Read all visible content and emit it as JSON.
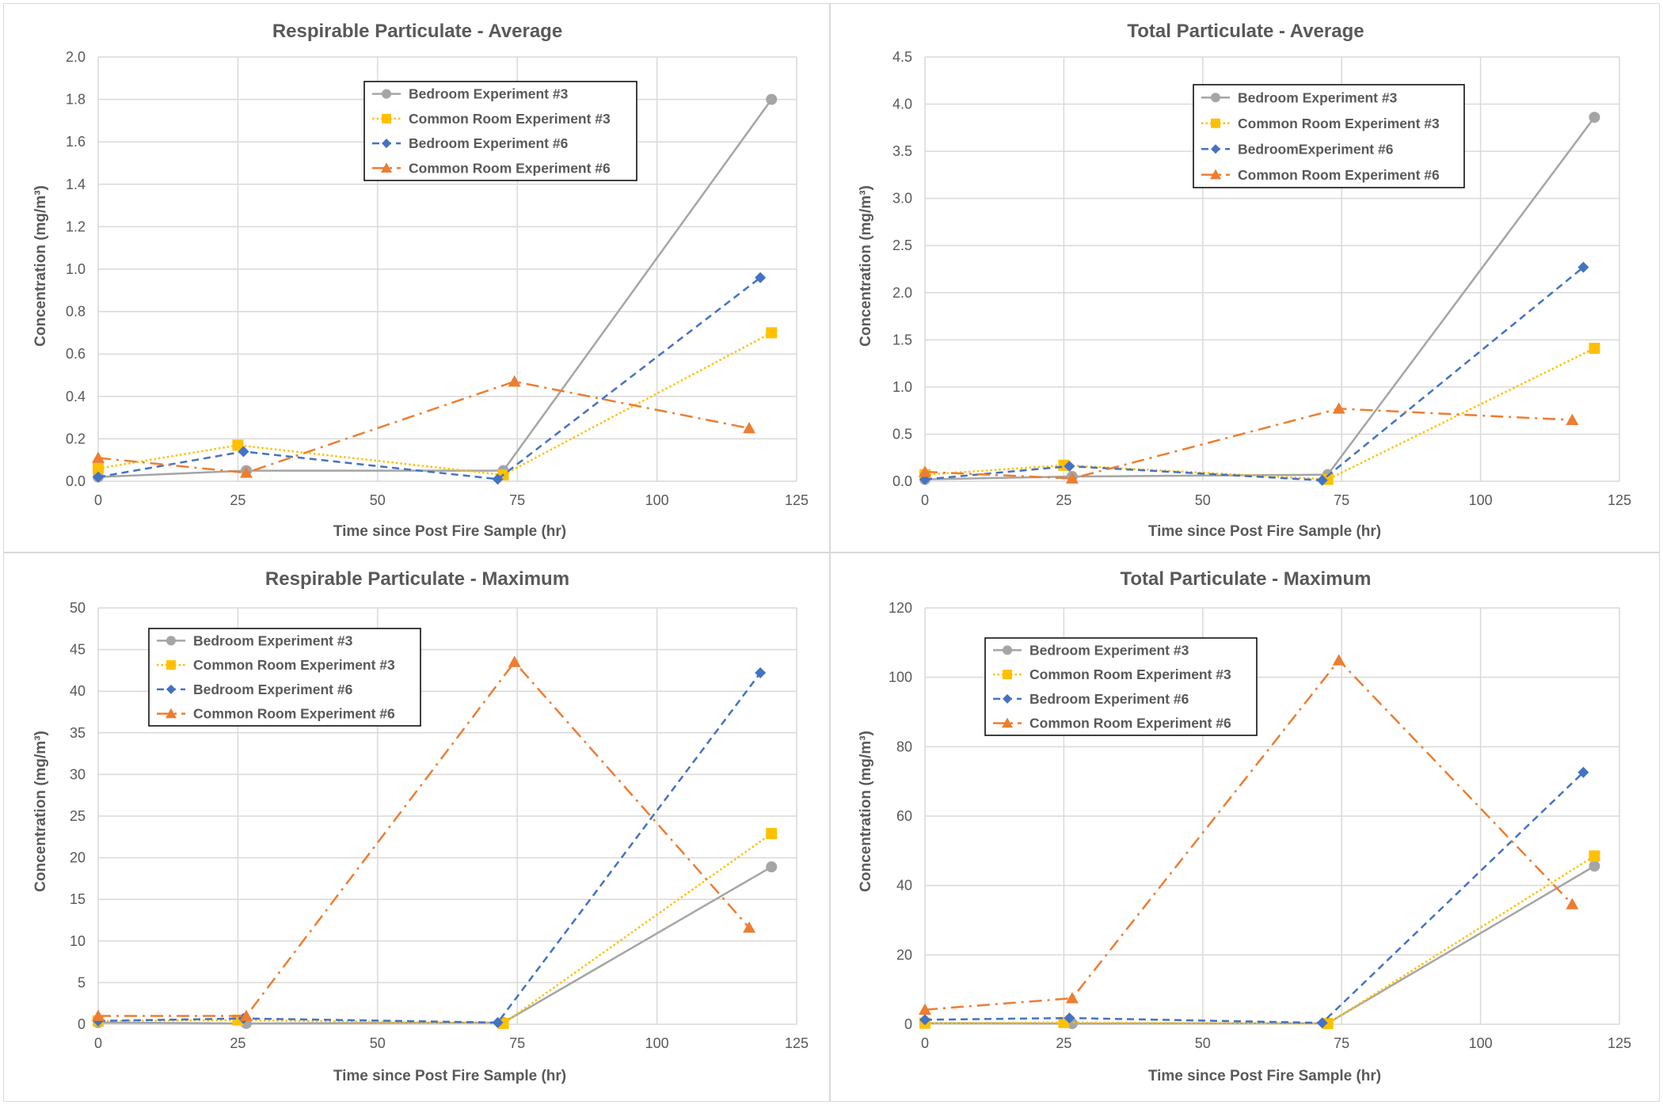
{
  "chart_data": [
    {
      "type": "line",
      "title": "Respirable Particulate - Average",
      "xlabel": "Time since Post Fire Sample (hr)",
      "ylabel": "Concentration (mg/m³)",
      "xlim": [
        0,
        125
      ],
      "ylim": [
        0,
        2.0
      ],
      "xticks": [
        "0",
        "25",
        "50",
        "75",
        "100",
        "125"
      ],
      "xtick_values": [
        0,
        25,
        50,
        75,
        100,
        125
      ],
      "yticks": [
        "0.0",
        "0.2",
        "0.4",
        "0.6",
        "0.8",
        "1.0",
        "1.2",
        "1.4",
        "1.6",
        "1.8",
        "2.0"
      ],
      "ytick_values": [
        0,
        0.2,
        0.4,
        0.6,
        0.8,
        1.0,
        1.2,
        1.4,
        1.6,
        1.8,
        2.0
      ],
      "grid": true,
      "legend_position": "top-center",
      "series": [
        {
          "name": "Bedroom Experiment #3",
          "style": "gray-solid-circle",
          "x": [
            0,
            26.5,
            72.5,
            120.5
          ],
          "y": [
            0.02,
            0.05,
            0.05,
            1.8
          ]
        },
        {
          "name": "Common Room Experiment #3",
          "style": "yellow-dotted-square",
          "x": [
            0,
            25,
            72.5,
            120.5
          ],
          "y": [
            0.06,
            0.17,
            0.03,
            0.7
          ]
        },
        {
          "name": "Bedroom Experiment #6",
          "style": "blue-dashed-diamond",
          "x": [
            0,
            26,
            71.5,
            118.5
          ],
          "y": [
            0.02,
            0.14,
            0.01,
            0.96
          ]
        },
        {
          "name": "Common Room Experiment #6",
          "style": "orange-dashdot-triangle",
          "x": [
            0,
            26.5,
            74.5,
            116.5
          ],
          "y": [
            0.11,
            0.04,
            0.47,
            0.25
          ]
        }
      ]
    },
    {
      "type": "line",
      "title": "Total Particulate - Average",
      "xlabel": "Time since Post Fire Sample (hr)",
      "ylabel": "Concentration (mg/m³)",
      "xlim": [
        0,
        125
      ],
      "ylim": [
        0,
        4.5
      ],
      "xticks": [
        "0",
        "25",
        "50",
        "75",
        "100",
        "125"
      ],
      "xtick_values": [
        0,
        25,
        50,
        75,
        100,
        125
      ],
      "yticks": [
        "0.0",
        "0.5",
        "1.0",
        "1.5",
        "2.0",
        "2.5",
        "3.0",
        "3.5",
        "4.0",
        "4.5"
      ],
      "ytick_values": [
        0,
        0.5,
        1.0,
        1.5,
        2.0,
        2.5,
        3.0,
        3.5,
        4.0,
        4.5
      ],
      "grid": true,
      "legend_position": "top-center",
      "series": [
        {
          "name": "Bedroom Experiment #3",
          "style": "gray-solid-circle",
          "x": [
            0,
            26.5,
            72.5,
            120.5
          ],
          "y": [
            0.02,
            0.05,
            0.07,
            3.86
          ]
        },
        {
          "name": "Common Room Experiment #3",
          "style": "yellow-dotted-square",
          "x": [
            0,
            25,
            72.5,
            120.5
          ],
          "y": [
            0.07,
            0.17,
            0.02,
            1.41
          ]
        },
        {
          "name": "BedroomExperiment #6",
          "style": "blue-dashed-diamond",
          "x": [
            0,
            26,
            71.5,
            118.5
          ],
          "y": [
            0.02,
            0.16,
            0.01,
            2.27
          ]
        },
        {
          "name": "Common Room Experiment #6",
          "style": "orange-dashdot-triangle",
          "x": [
            0,
            26.5,
            74.5,
            116.5
          ],
          "y": [
            0.1,
            0.03,
            0.77,
            0.65
          ]
        }
      ]
    },
    {
      "type": "line",
      "title": "Respirable Particulate - Maximum",
      "xlabel": "Time since Post Fire Sample (hr)",
      "ylabel": "Concentration (mg/m³)",
      "xlim": [
        0,
        125
      ],
      "ylim": [
        0,
        50
      ],
      "xticks": [
        "0",
        "25",
        "50",
        "75",
        "100",
        "125"
      ],
      "xtick_values": [
        0,
        25,
        50,
        75,
        100,
        125
      ],
      "yticks": [
        "0",
        "5",
        "10",
        "15",
        "20",
        "25",
        "30",
        "35",
        "40",
        "45",
        "50"
      ],
      "ytick_values": [
        0,
        5,
        10,
        15,
        20,
        25,
        30,
        35,
        40,
        45,
        50
      ],
      "grid": true,
      "legend_position": "top-left",
      "series": [
        {
          "name": "Bedroom Experiment #3",
          "style": "gray-solid-circle",
          "x": [
            0,
            26.5,
            72.5,
            120.5
          ],
          "y": [
            0.2,
            0.1,
            0.2,
            18.9
          ]
        },
        {
          "name": "Common Room Experiment #3",
          "style": "yellow-dotted-square",
          "x": [
            0,
            25,
            72.5,
            120.5
          ],
          "y": [
            0.4,
            0.5,
            0.1,
            22.9
          ]
        },
        {
          "name": "Bedroom Experiment #6",
          "style": "blue-dashed-diamond",
          "x": [
            0,
            26,
            71.5,
            118.5
          ],
          "y": [
            0.4,
            0.7,
            0.2,
            42.2
          ]
        },
        {
          "name": "Common Room Experiment #6",
          "style": "orange-dashdot-triangle",
          "x": [
            0,
            26.5,
            74.5,
            116.5
          ],
          "y": [
            1.0,
            1.0,
            43.5,
            11.6
          ]
        }
      ]
    },
    {
      "type": "line",
      "title": "Total Particulate - Maximum",
      "xlabel": "Time since Post Fire Sample (hr)",
      "ylabel": "Concentration (mg/m³)",
      "xlim": [
        0,
        125
      ],
      "ylim": [
        0,
        120
      ],
      "xticks": [
        "0",
        "25",
        "50",
        "75",
        "100",
        "125"
      ],
      "xtick_values": [
        0,
        25,
        50,
        75,
        100,
        125
      ],
      "yticks": [
        "0",
        "20",
        "40",
        "60",
        "80",
        "100",
        "120"
      ],
      "ytick_values": [
        0,
        20,
        40,
        60,
        80,
        100,
        120
      ],
      "grid": true,
      "legend_position": "top-left",
      "series": [
        {
          "name": "Bedroom Experiment #3",
          "style": "gray-solid-circle",
          "x": [
            0,
            26.5,
            72.5,
            120.5
          ],
          "y": [
            0.3,
            0.2,
            0.3,
            45.6
          ]
        },
        {
          "name": "Common Room Experiment #3",
          "style": "yellow-dotted-square",
          "x": [
            0,
            25,
            72.5,
            120.5
          ],
          "y": [
            0.3,
            0.5,
            0.2,
            48.5
          ]
        },
        {
          "name": "Bedroom Experiment #6",
          "style": "blue-dashed-diamond",
          "x": [
            0,
            26,
            71.5,
            118.5
          ],
          "y": [
            1.3,
            1.8,
            0.4,
            72.6
          ]
        },
        {
          "name": "Common Room Experiment #6",
          "style": "orange-dashdot-triangle",
          "x": [
            0,
            26.5,
            74.5,
            116.5
          ],
          "y": [
            4.2,
            7.5,
            104.9,
            34.6
          ]
        }
      ]
    }
  ],
  "series_colors": {
    "gray-solid-circle": "#a5a5a5",
    "yellow-dotted-square": "#ffc000",
    "blue-dashed-diamond": "#4472c4",
    "orange-dashdot-triangle": "#ed7d31"
  }
}
